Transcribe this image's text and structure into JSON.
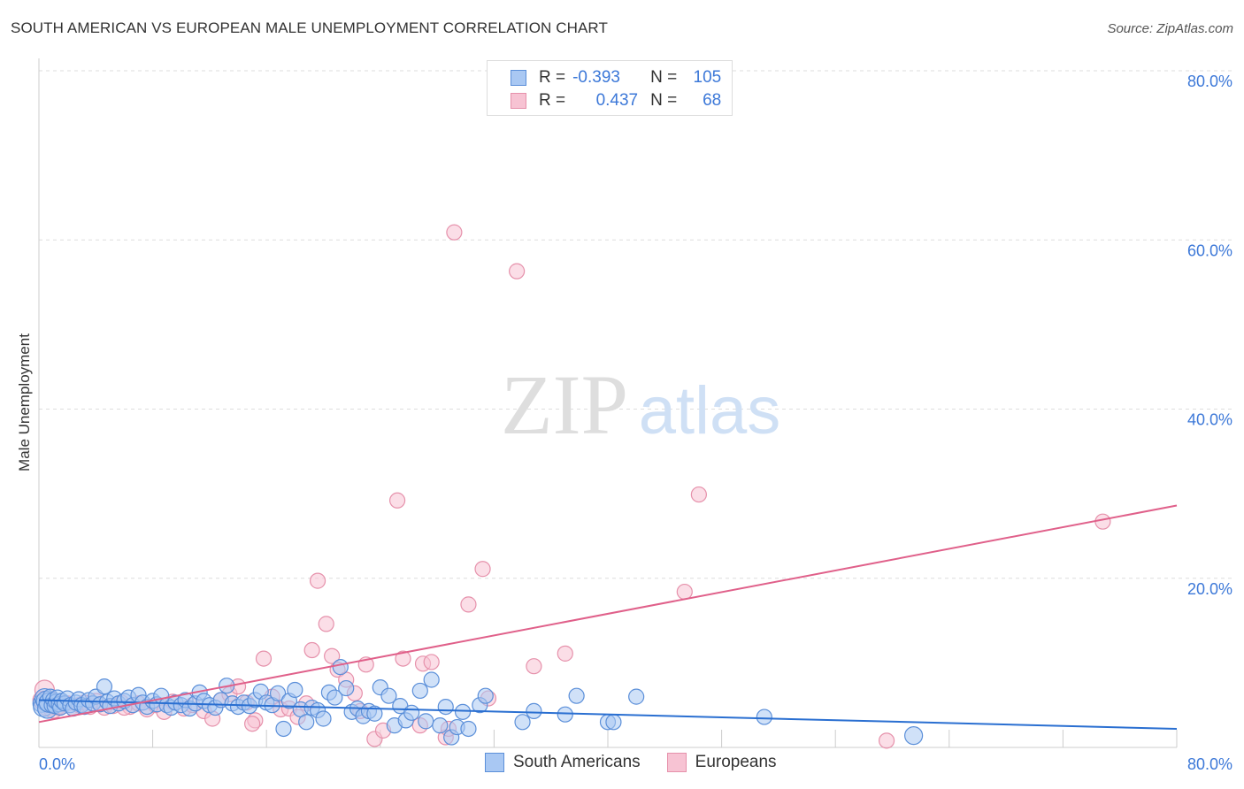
{
  "header": {
    "title": "SOUTH AMERICAN VS EUROPEAN MALE UNEMPLOYMENT CORRELATION CHART",
    "source": "Source: ZipAtlas.com"
  },
  "watermark": {
    "zip": "ZIP",
    "atlas": "atlas"
  },
  "legend": {
    "rows": [
      {
        "r_label": "R =",
        "r_value": "-0.393",
        "n_label": "N =",
        "n_value": "105",
        "color": "#a8c8f0",
        "border": "#6a9de0"
      },
      {
        "r_label": "R =",
        "r_value": "0.437",
        "n_label": "N =",
        "n_value": "68",
        "color": "#f8c0d0",
        "border": "#e890a8"
      }
    ]
  },
  "colors": {
    "blue_fill": "#a9c8f3",
    "blue_stroke": "#5b8fd9",
    "blue_line": "#2a6fd1",
    "pink_fill": "#f7c3d3",
    "pink_stroke": "#e691ab",
    "pink_line": "#e0608a",
    "tick_text": "#3c78d8"
  },
  "chart_data": {
    "type": "scatter",
    "title": "SOUTH AMERICAN VS EUROPEAN MALE UNEMPLOYMENT CORRELATION CHART",
    "xlabel": "",
    "ylabel": "Male Unemployment",
    "xlim": [
      0,
      80
    ],
    "ylim": [
      0,
      80
    ],
    "x_tick_labels": [
      "0.0%",
      "80.0%"
    ],
    "y_tick_labels": [
      "20.0%",
      "40.0%",
      "60.0%",
      "80.0%"
    ],
    "y_ticks": [
      20,
      40,
      60,
      80
    ],
    "grid": true,
    "legend_position": "bottom",
    "series": [
      {
        "name": "South Americans",
        "points": [
          [
            0.2,
            5.2
          ],
          [
            0.3,
            4.8
          ],
          [
            0.4,
            5.8
          ],
          [
            0.5,
            5.5
          ],
          [
            0.6,
            4.6
          ],
          [
            0.7,
            5.3
          ],
          [
            0.8,
            6.0
          ],
          [
            0.9,
            5.0
          ],
          [
            1.0,
            5.6
          ],
          [
            1.1,
            4.9
          ],
          [
            1.2,
            5.4
          ],
          [
            1.3,
            5.9
          ],
          [
            1.4,
            5.1
          ],
          [
            1.5,
            4.7
          ],
          [
            1.6,
            5.5
          ],
          [
            1.8,
            5.2
          ],
          [
            2.0,
            5.8
          ],
          [
            2.2,
            5.0
          ],
          [
            2.4,
            4.6
          ],
          [
            2.6,
            5.3
          ],
          [
            2.8,
            5.7
          ],
          [
            3.0,
            5.0
          ],
          [
            3.2,
            4.8
          ],
          [
            3.5,
            5.6
          ],
          [
            3.8,
            5.2
          ],
          [
            4.0,
            6.0
          ],
          [
            4.3,
            5.1
          ],
          [
            4.6,
            7.2
          ],
          [
            4.8,
            5.4
          ],
          [
            5.0,
            4.9
          ],
          [
            5.3,
            5.8
          ],
          [
            5.6,
            5.2
          ],
          [
            6.0,
            5.5
          ],
          [
            6.3,
            5.9
          ],
          [
            6.6,
            5.0
          ],
          [
            7.0,
            6.2
          ],
          [
            7.3,
            5.3
          ],
          [
            7.6,
            4.8
          ],
          [
            8.0,
            5.5
          ],
          [
            8.3,
            5.1
          ],
          [
            8.6,
            6.1
          ],
          [
            9.0,
            5.0
          ],
          [
            9.3,
            4.7
          ],
          [
            9.6,
            5.3
          ],
          [
            10.0,
            5.0
          ],
          [
            10.3,
            5.6
          ],
          [
            10.6,
            4.6
          ],
          [
            11.0,
            5.2
          ],
          [
            11.3,
            6.5
          ],
          [
            11.6,
            5.5
          ],
          [
            12.0,
            5.0
          ],
          [
            12.4,
            4.7
          ],
          [
            12.8,
            5.6
          ],
          [
            13.2,
            7.3
          ],
          [
            13.6,
            5.2
          ],
          [
            14.0,
            4.8
          ],
          [
            14.4,
            5.3
          ],
          [
            14.8,
            4.9
          ],
          [
            15.2,
            5.6
          ],
          [
            15.6,
            6.6
          ],
          [
            16.0,
            5.3
          ],
          [
            16.4,
            5.0
          ],
          [
            16.8,
            6.4
          ],
          [
            17.2,
            2.2
          ],
          [
            17.6,
            5.5
          ],
          [
            18.0,
            6.8
          ],
          [
            18.4,
            4.5
          ],
          [
            18.8,
            3.0
          ],
          [
            19.2,
            4.7
          ],
          [
            19.6,
            4.4
          ],
          [
            20.0,
            3.4
          ],
          [
            20.4,
            6.5
          ],
          [
            20.8,
            5.9
          ],
          [
            21.2,
            9.5
          ],
          [
            21.6,
            7.0
          ],
          [
            22.0,
            4.2
          ],
          [
            22.4,
            4.6
          ],
          [
            22.8,
            3.7
          ],
          [
            23.2,
            4.3
          ],
          [
            23.6,
            4.0
          ],
          [
            24.0,
            7.1
          ],
          [
            24.6,
            6.1
          ],
          [
            25.0,
            2.6
          ],
          [
            25.4,
            4.9
          ],
          [
            25.8,
            3.2
          ],
          [
            26.2,
            4.1
          ],
          [
            26.8,
            6.7
          ],
          [
            27.2,
            3.1
          ],
          [
            27.6,
            8.0
          ],
          [
            28.2,
            2.6
          ],
          [
            28.6,
            4.8
          ],
          [
            29.0,
            1.2
          ],
          [
            29.4,
            2.4
          ],
          [
            29.8,
            4.2
          ],
          [
            30.2,
            2.2
          ],
          [
            31.0,
            5.0
          ],
          [
            31.4,
            6.1
          ],
          [
            34.0,
            3.0
          ],
          [
            34.8,
            4.3
          ],
          [
            37.0,
            3.9
          ],
          [
            37.8,
            6.1
          ],
          [
            40.0,
            3.0
          ],
          [
            40.4,
            3.0
          ],
          [
            42.0,
            6.0
          ],
          [
            51.0,
            3.6
          ]
        ],
        "extra_points": [
          [
            61.5,
            1.4
          ]
        ]
      },
      {
        "name": "Europeans",
        "points": [
          [
            0.2,
            5.6
          ],
          [
            0.4,
            6.8
          ],
          [
            0.6,
            4.9
          ],
          [
            0.8,
            5.3
          ],
          [
            1.0,
            4.6
          ],
          [
            1.3,
            5.0
          ],
          [
            1.6,
            4.8
          ],
          [
            2.0,
            5.2
          ],
          [
            2.4,
            4.6
          ],
          [
            2.8,
            5.0
          ],
          [
            3.2,
            5.3
          ],
          [
            3.6,
            4.8
          ],
          [
            4.0,
            5.5
          ],
          [
            4.6,
            4.7
          ],
          [
            5.2,
            4.9
          ],
          [
            5.8,
            5.3
          ],
          [
            6.4,
            4.8
          ],
          [
            7.0,
            5.2
          ],
          [
            7.6,
            4.5
          ],
          [
            8.2,
            5.0
          ],
          [
            8.8,
            4.2
          ],
          [
            9.4,
            5.4
          ],
          [
            10.2,
            4.6
          ],
          [
            10.8,
            5.0
          ],
          [
            11.6,
            4.3
          ],
          [
            12.2,
            3.4
          ],
          [
            12.8,
            5.6
          ],
          [
            13.4,
            6.3
          ],
          [
            14.0,
            7.2
          ],
          [
            14.6,
            5.3
          ],
          [
            15.2,
            3.2
          ],
          [
            15.8,
            10.5
          ],
          [
            16.4,
            6.0
          ],
          [
            17.0,
            4.5
          ],
          [
            17.6,
            4.6
          ],
          [
            18.2,
            3.6
          ],
          [
            18.8,
            5.2
          ],
          [
            19.2,
            11.5
          ],
          [
            19.6,
            19.7
          ],
          [
            20.2,
            14.6
          ],
          [
            20.6,
            10.8
          ],
          [
            21.0,
            9.2
          ],
          [
            21.6,
            8.0
          ],
          [
            22.2,
            6.4
          ],
          [
            22.6,
            4.3
          ],
          [
            23.0,
            9.8
          ],
          [
            23.6,
            1.0
          ],
          [
            24.2,
            2.0
          ],
          [
            25.2,
            29.2
          ],
          [
            25.6,
            10.5
          ],
          [
            26.8,
            2.6
          ],
          [
            27.0,
            9.9
          ],
          [
            27.6,
            10.1
          ],
          [
            28.6,
            1.2
          ],
          [
            28.8,
            2.2
          ],
          [
            29.2,
            60.9
          ],
          [
            30.2,
            16.9
          ],
          [
            31.2,
            21.1
          ],
          [
            31.6,
            5.8
          ],
          [
            33.6,
            56.3
          ],
          [
            34.8,
            9.6
          ],
          [
            37.0,
            11.1
          ],
          [
            45.4,
            18.4
          ],
          [
            46.4,
            29.9
          ],
          [
            59.6,
            0.8
          ],
          [
            74.8,
            26.7
          ],
          [
            15.0,
            2.8
          ],
          [
            6.0,
            4.7
          ]
        ]
      }
    ],
    "trend_lines": [
      {
        "name": "South Americans",
        "x": [
          0,
          80
        ],
        "y": [
          5.6,
          2.2
        ]
      },
      {
        "name": "Europeans",
        "x": [
          0,
          80
        ],
        "y": [
          3.0,
          28.6
        ]
      }
    ]
  },
  "bottom_legend": {
    "items": [
      {
        "label": "South Americans"
      },
      {
        "label": "Europeans"
      }
    ]
  }
}
